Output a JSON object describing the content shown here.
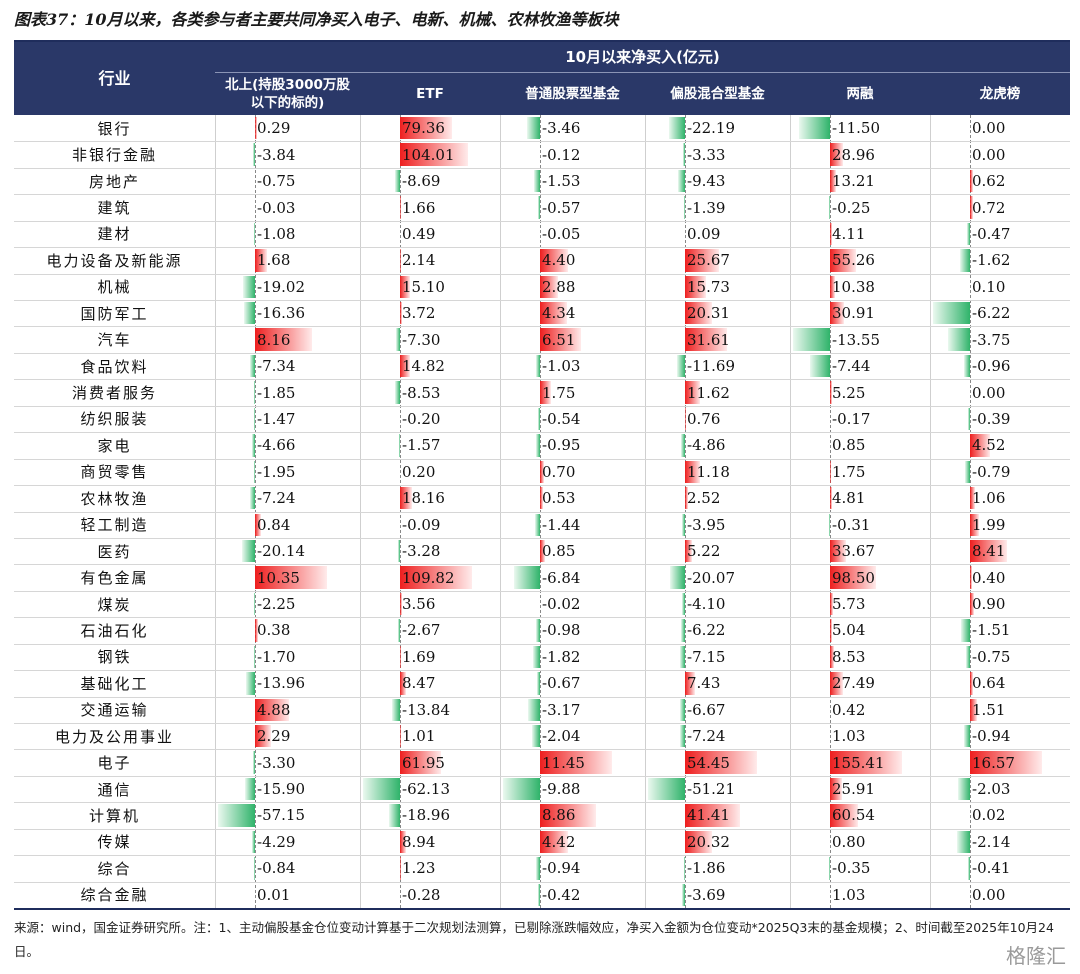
{
  "header": {
    "title": "图表37：10月以来，各类参与者主要共同净买入电子、电新、机械、农林牧渔等板块"
  },
  "table": {
    "group_header": "10月以来净买入(亿元)",
    "columns": [
      "行业",
      "北上(持股3000万股以下的标的)",
      "ETF",
      "普通股票型基金",
      "偏股混合型基金",
      "两融",
      "龙虎榜"
    ],
    "rows": [
      [
        "银行",
        "0.29",
        "79.36",
        "-3.46",
        "-22.19",
        "-11.50",
        "0.00"
      ],
      [
        "非银行金融",
        "-3.84",
        "104.01",
        "-0.12",
        "-3.33",
        "28.96",
        "0.00"
      ],
      [
        "房地产",
        "-0.75",
        "-8.69",
        "-1.53",
        "-9.43",
        "13.21",
        "0.62"
      ],
      [
        "建筑",
        "-0.03",
        "1.66",
        "-0.57",
        "-1.39",
        "-0.25",
        "0.72"
      ],
      [
        "建材",
        "-1.08",
        "0.49",
        "-0.05",
        "0.09",
        "4.11",
        "-0.47"
      ],
      [
        "电力设备及新能源",
        "1.68",
        "2.14",
        "4.40",
        "25.67",
        "55.26",
        "-1.62"
      ],
      [
        "机械",
        "-19.02",
        "15.10",
        "2.88",
        "15.73",
        "10.38",
        "0.10"
      ],
      [
        "国防军工",
        "-16.36",
        "3.72",
        "4.34",
        "20.31",
        "30.91",
        "-6.22"
      ],
      [
        "汽车",
        "8.16",
        "-7.30",
        "6.51",
        "31.61",
        "-13.55",
        "-3.75"
      ],
      [
        "食品饮料",
        "-7.34",
        "14.82",
        "-1.03",
        "-11.69",
        "-7.44",
        "-0.96"
      ],
      [
        "消费者服务",
        "-1.85",
        "-8.53",
        "1.75",
        "11.62",
        "5.25",
        "0.00"
      ],
      [
        "纺织服装",
        "-1.47",
        "-0.20",
        "-0.54",
        "0.76",
        "-0.17",
        "-0.39"
      ],
      [
        "家电",
        "-4.66",
        "-1.57",
        "-0.95",
        "-4.86",
        "0.85",
        "4.52"
      ],
      [
        "商贸零售",
        "-1.95",
        "0.20",
        "0.70",
        "11.18",
        "1.75",
        "-0.79"
      ],
      [
        "农林牧渔",
        "-7.24",
        "18.16",
        "0.53",
        "2.52",
        "4.81",
        "1.06"
      ],
      [
        "轻工制造",
        "0.84",
        "-0.09",
        "-1.44",
        "-3.95",
        "-0.31",
        "1.99"
      ],
      [
        "医药",
        "-20.14",
        "-3.28",
        "0.85",
        "5.22",
        "33.67",
        "8.41"
      ],
      [
        "有色金属",
        "10.35",
        "109.82",
        "-6.84",
        "-20.07",
        "98.50",
        "0.40"
      ],
      [
        "煤炭",
        "-2.25",
        "3.56",
        "-0.02",
        "-4.10",
        "5.73",
        "0.90"
      ],
      [
        "石油石化",
        "0.38",
        "-2.67",
        "-0.98",
        "-6.22",
        "5.04",
        "-1.51"
      ],
      [
        "钢铁",
        "-1.70",
        "1.69",
        "-1.82",
        "-7.15",
        "8.53",
        "-0.75"
      ],
      [
        "基础化工",
        "-13.96",
        "8.47",
        "-0.67",
        "7.43",
        "27.49",
        "0.64"
      ],
      [
        "交通运输",
        "4.88",
        "-13.84",
        "-3.17",
        "-6.67",
        "0.42",
        "1.51"
      ],
      [
        "电力及公用事业",
        "2.29",
        "1.01",
        "-2.04",
        "-7.24",
        "1.03",
        "-0.94"
      ],
      [
        "电子",
        "-3.30",
        "61.95",
        "11.45",
        "54.45",
        "155.41",
        "16.57"
      ],
      [
        "通信",
        "-15.90",
        "-62.13",
        "-9.88",
        "-51.21",
        "25.91",
        "-2.03"
      ],
      [
        "计算机",
        "-57.15",
        "-18.96",
        "8.86",
        "41.41",
        "60.54",
        "0.02"
      ],
      [
        "传媒",
        "-4.29",
        "8.94",
        "4.42",
        "20.32",
        "0.80",
        "-2.14"
      ],
      [
        "综合",
        "-0.84",
        "1.23",
        "-0.94",
        "-1.86",
        "-0.35",
        "-0.41"
      ],
      [
        "综合金融",
        "0.01",
        "-0.28",
        "-0.42",
        "-3.69",
        "1.03",
        "0.00"
      ]
    ]
  },
  "footer": {
    "note": "来源：wind，国金证券研究所。注：1、主动偏股基金仓位变动计算基于二次规划法测算，已剔除涨跌幅效应，净买入金额为仓位变动*2025Q3末的基金规模；2、时间截至2025年10月24日。",
    "watermark": "格隆汇"
  }
}
